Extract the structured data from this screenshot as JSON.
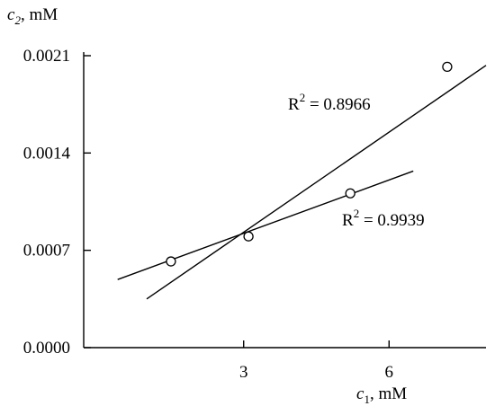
{
  "chart_data": {
    "type": "scatter",
    "ylabel": {
      "var": "c",
      "sub": "2",
      "unit": ", mM"
    },
    "xlabel": {
      "var": "c",
      "sub": "1",
      "unit": ", mM"
    },
    "xlim": [
      -0.3,
      8.0
    ],
    "ylim": [
      0.0,
      0.0021
    ],
    "xticks": [
      3,
      6
    ],
    "xtick_labels": [
      "3",
      "6"
    ],
    "yticks": [
      0.0,
      0.0007,
      0.0014,
      0.0021
    ],
    "ytick_labels": [
      "0.0000",
      "0.0007",
      "0.0014",
      "0.0021"
    ],
    "grid": false,
    "points": [
      {
        "x": 1.5,
        "y": 0.00062
      },
      {
        "x": 3.1,
        "y": 0.0008
      },
      {
        "x": 5.2,
        "y": 0.00111
      },
      {
        "x": 7.2,
        "y": 0.00202
      }
    ],
    "fits": [
      {
        "x": [
          1.0,
          8.0
        ],
        "y": [
          0.00035,
          0.00203
        ],
        "label": {
          "base": "R",
          "exp": "2",
          "rest": " = 0.8966"
        }
      },
      {
        "x": [
          0.4,
          6.5
        ],
        "y": [
          0.00049,
          0.00127
        ],
        "label": {
          "base": "R",
          "exp": "2",
          "rest": " = 0.9939"
        }
      }
    ]
  }
}
